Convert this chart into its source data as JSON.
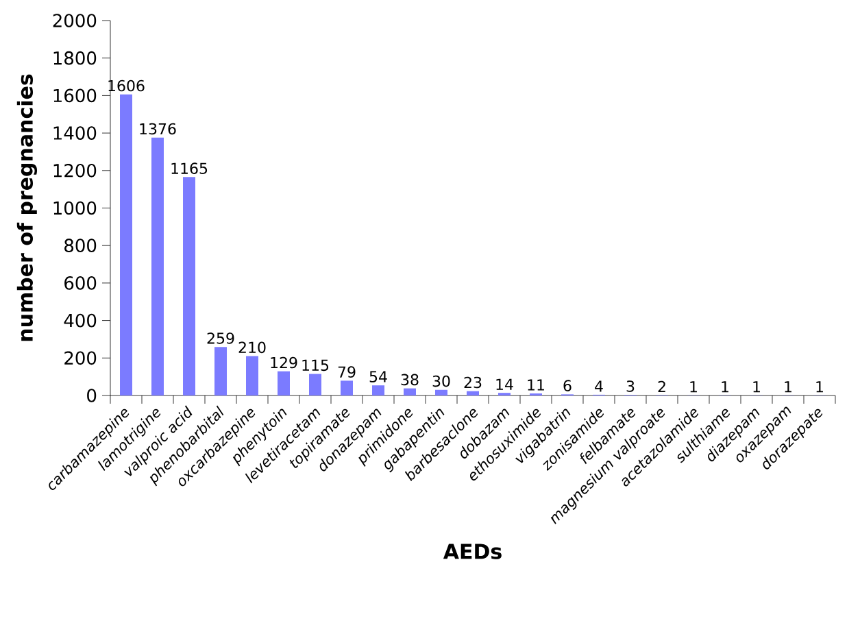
{
  "chart_data": {
    "type": "bar",
    "xlabel": "AEDs",
    "ylabel": "number of pregnancies",
    "categories": [
      "carbamazepine",
      "lamotrigine",
      "valproic acid",
      "phenobarbital",
      "oxcarbazepine",
      "phenytoin",
      "levetiracetam",
      "topiramate",
      "donazepam",
      "primidone",
      "gabapentin",
      "barbesaclone",
      "dobazam",
      "ethosuximide",
      "vigabatrin",
      "zonisamide",
      "felbamate",
      "magnesium valproate",
      "acetazolamide",
      "sulthiame",
      "diazepam",
      "oxazepam",
      "dorazepate"
    ],
    "values": [
      1606,
      1376,
      1165,
      259,
      210,
      129,
      115,
      79,
      54,
      38,
      30,
      23,
      14,
      11,
      6,
      4,
      3,
      2,
      1,
      1,
      1,
      1,
      1
    ],
    "color": "#7b7bff",
    "data_labels": true,
    "grid": false,
    "ylim": [
      0,
      2000
    ],
    "yticks": [
      0,
      200,
      400,
      600,
      800,
      1000,
      1200,
      1400,
      1600,
      1800,
      2000
    ]
  }
}
